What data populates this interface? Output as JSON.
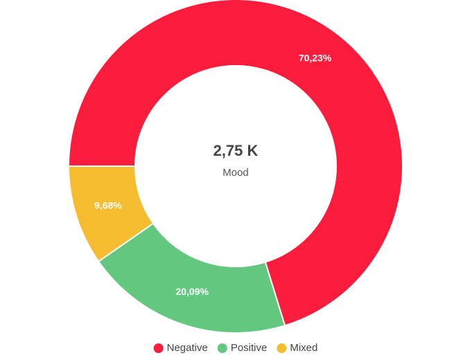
{
  "chart_data": {
    "type": "donut",
    "center_value": "2,75 K",
    "center_label": "Mood",
    "categories": [
      "Negative",
      "Positive",
      "Mixed"
    ],
    "values": [
      70.23,
      20.09,
      9.68
    ],
    "value_labels": [
      "70,23%",
      "20,09%",
      "9,68%"
    ],
    "colors": [
      "#f91c3d",
      "#63c77f",
      "#f5bc2f"
    ],
    "legend": "bottom"
  }
}
